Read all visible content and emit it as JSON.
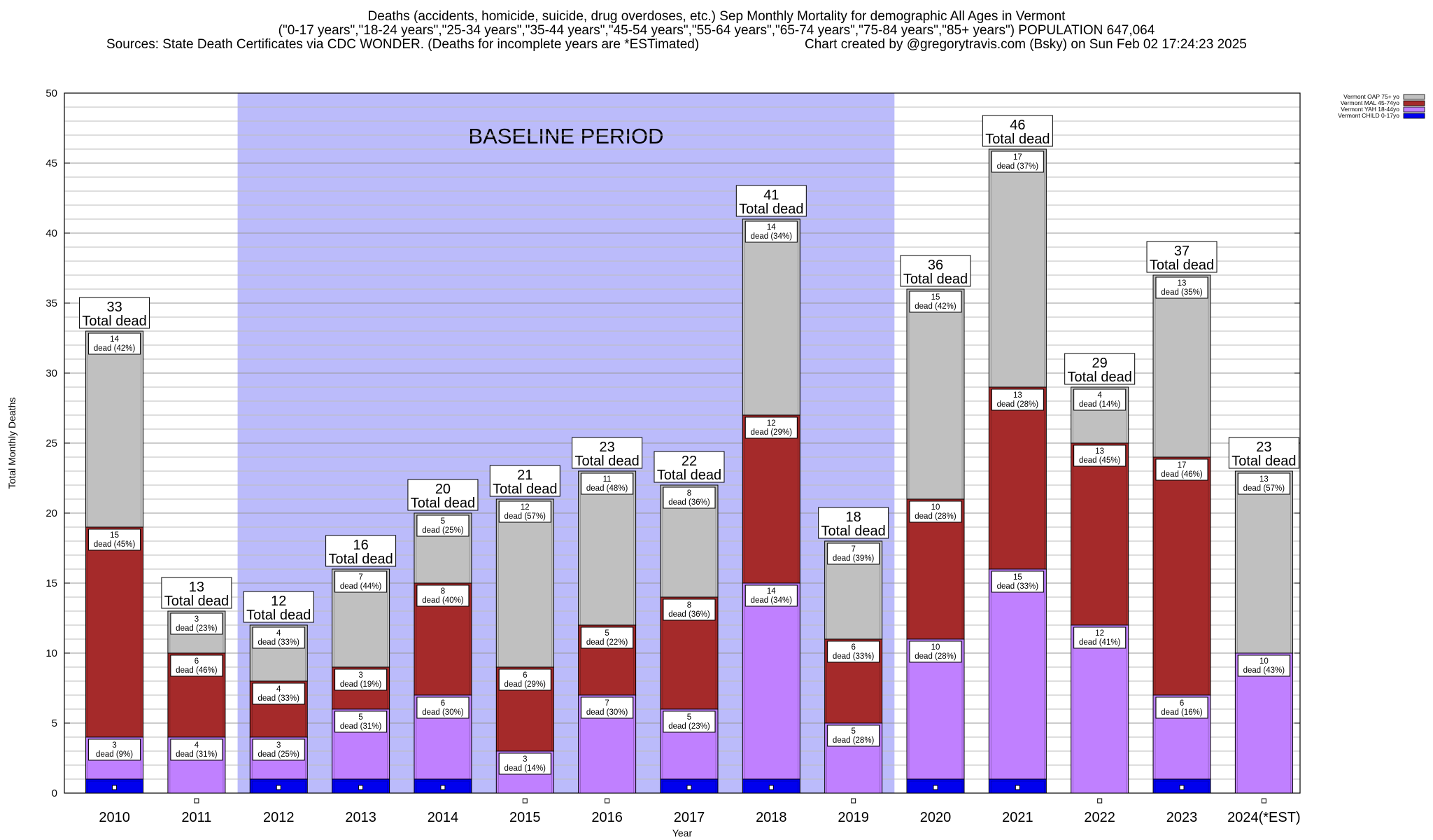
{
  "header": {
    "line1": "Deaths (accidents, homicide, suicide, drug overdoses, etc.) Sep Monthly Mortality for demographic All Ages in Vermont",
    "line2": "(\"0-17 years\",\"18-24 years\",\"25-34 years\",\"35-44 years\",\"45-54 years\",\"55-64 years\",\"65-74 years\",\"75-84 years\",\"85+ years\") POPULATION 647,064",
    "line3_left": "Sources: State Death Certificates via CDC WONDER. (Deaths for incomplete years are *ESTimated)",
    "line3_right": "Chart created by @gregorytravis.com (Bsky) on Sun Feb 02 17:24:23 2025"
  },
  "chart_data": {
    "type": "bar",
    "stacked": true,
    "title": "Deaths (accidents, homicide, suicide, drug overdoses, etc.) Sep Monthly Mortality for demographic All Ages in Vermont",
    "xlabel": "Year",
    "ylabel": "Total Monthly Deaths",
    "ylim": [
      0,
      50
    ],
    "yticks": [
      0,
      5,
      10,
      15,
      20,
      25,
      30,
      35,
      40,
      45,
      50
    ],
    "grid": true,
    "legend_position": "top-right",
    "baseline_label": "BASELINE PERIOD",
    "baseline_range": [
      "2012",
      "2019"
    ],
    "total_suffix": "Total dead",
    "segment_label_word": "dead",
    "categories": [
      "2010",
      "2011",
      "2012",
      "2013",
      "2014",
      "2015",
      "2016",
      "2017",
      "2018",
      "2019",
      "2020",
      "2021",
      "2022",
      "2023",
      "2024(*EST)"
    ],
    "totals": [
      33,
      13,
      12,
      16,
      20,
      21,
      23,
      22,
      41,
      18,
      36,
      46,
      29,
      37,
      23
    ],
    "series": [
      {
        "name": "Vermont CHILD 0-17yo",
        "color": "#0000ee",
        "values": [
          1,
          0,
          1,
          1,
          1,
          0,
          0,
          1,
          1,
          0,
          1,
          1,
          0,
          1,
          0
        ],
        "pct": [
          null,
          null,
          null,
          null,
          null,
          null,
          null,
          null,
          null,
          null,
          null,
          null,
          null,
          null,
          null
        ]
      },
      {
        "name": "Vermont YAH 18-44yo",
        "color": "#c080ff",
        "values": [
          3,
          4,
          3,
          5,
          6,
          3,
          7,
          5,
          14,
          5,
          10,
          15,
          12,
          6,
          10
        ],
        "pct": [
          "9%",
          "31%",
          "25%",
          "31%",
          "30%",
          "14%",
          "30%",
          "23%",
          "34%",
          "28%",
          "28%",
          "33%",
          "41%",
          "16%",
          "43%"
        ]
      },
      {
        "name": "Vermont MAL 45-74yo",
        "color": "#a52a2a",
        "values": [
          15,
          6,
          4,
          3,
          8,
          6,
          5,
          8,
          12,
          6,
          10,
          13,
          13,
          17,
          0
        ],
        "pct": [
          "45%",
          "46%",
          "33%",
          "19%",
          "40%",
          "29%",
          "22%",
          "36%",
          "29%",
          "33%",
          "28%",
          "28%",
          "45%",
          "46%",
          null
        ]
      },
      {
        "name": "Vermont OAP 75+ yo",
        "color": "#c0c0c0",
        "values": [
          14,
          3,
          4,
          7,
          5,
          12,
          11,
          8,
          14,
          7,
          15,
          17,
          4,
          13,
          13
        ],
        "pct": [
          "42%",
          "23%",
          "33%",
          "44%",
          "25%",
          "57%",
          "48%",
          "36%",
          "34%",
          "39%",
          "42%",
          "37%",
          "14%",
          "35%",
          "57%"
        ]
      }
    ]
  }
}
